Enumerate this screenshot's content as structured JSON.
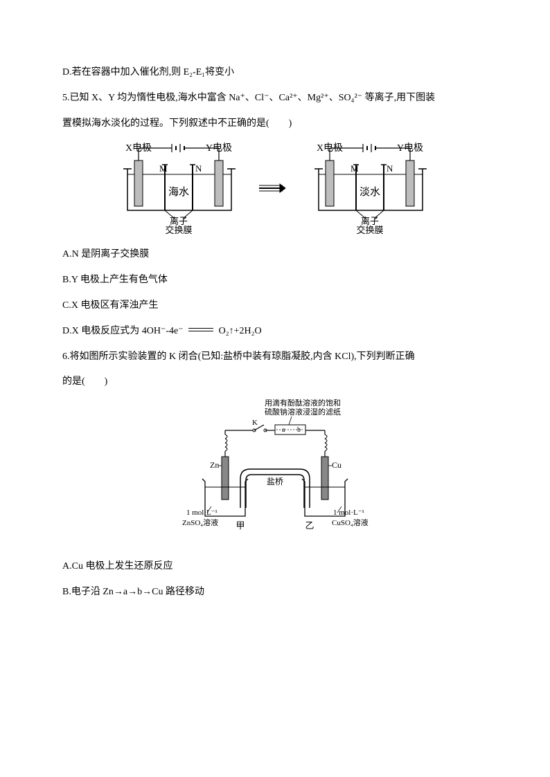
{
  "line_d": "D.若在容器中加入催化剂,则 E₂-E₁将变小",
  "q5": {
    "stem1": "5.已知 X、Y 均为惰性电极,海水中富含 Na⁺、Cl⁻、Ca²⁺、Mg²⁺、SO₄²⁻ 等离子,用下图装",
    "stem2": "置模拟海水淡化的过程。下列叙述中不正确的是(　　)",
    "optA": "A.N 是阴离子交换膜",
    "optB": "B.Y 电极上产生有色气体",
    "optC": "C.X 电极区有浑浊产生",
    "optD_pre": "D.X 电极反应式为 4OH⁻-4e⁻",
    "optD_post": " O₂↑+2H₂O",
    "fig": {
      "left": {
        "xLabel": "X电极",
        "yLabel": "Y电极",
        "m": "M",
        "n": "N",
        "center": "海水",
        "bottom1": "离子",
        "bottom2": "交换膜"
      },
      "right": {
        "xLabel": "X电极",
        "yLabel": "Y电极",
        "m": "M",
        "n": "N",
        "center": "淡水",
        "bottom1": "离子",
        "bottom2": "交换膜"
      },
      "colors": {
        "stroke": "#000000",
        "electrodeFill": "#bdbdbd",
        "bg": "#ffffff"
      }
    }
  },
  "q6": {
    "stem1": "6.将如图所示实验装置的 K 闭合(已知:盐桥中装有琼脂凝胶,内含 KCl),下列判断正确",
    "stem2": "的是(　　)",
    "optA": "A.Cu 电极上发生还原反应",
    "optB": "B.电子沿 Zn→a→b→Cu 路径移动",
    "fig": {
      "topText1": "用滴有酚酞溶液的饱和",
      "topText2": "硫酸钠溶液浸湿的滤纸",
      "k": "K",
      "a": "a",
      "b": "b",
      "zn": "Zn",
      "cu": "Cu",
      "bridge": "盐桥",
      "leftSol1": "1 mol·L⁻¹",
      "leftSol2": "ZnSO₄溶液",
      "rightSol1": "1 mol·L⁻¹",
      "rightSol2": "CuSO₄溶液",
      "jia": "甲",
      "yi": "乙",
      "colors": {
        "stroke": "#000000",
        "electrodeFill": "#888888",
        "beakerStroke": "#000000"
      }
    }
  }
}
